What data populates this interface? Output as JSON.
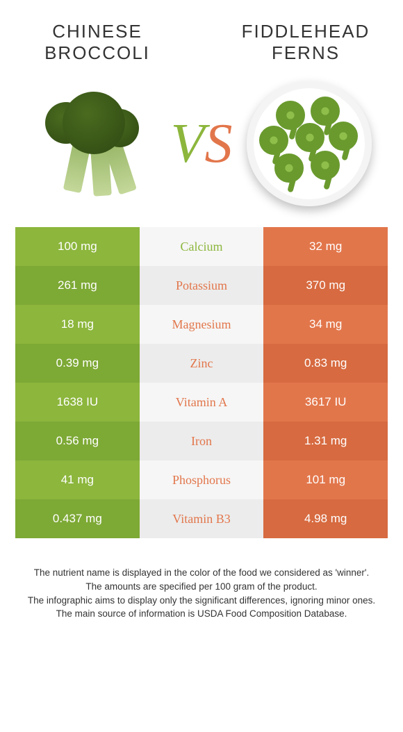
{
  "foods": {
    "left": {
      "title": "Chinese Broccoli"
    },
    "right": {
      "title": "Fiddlehead Ferns"
    }
  },
  "vs": {
    "v": "V",
    "s": "S"
  },
  "colors": {
    "left_a": "#8cb63c",
    "left_b": "#7da935",
    "mid_a": "#f6f6f6",
    "mid_b": "#ececec",
    "right_a": "#e2764b",
    "right_b": "#d76a40",
    "mid_green": "#8cb63c",
    "mid_orange": "#e2764b"
  },
  "rows": [
    {
      "left": "100 mg",
      "label": "Calcium",
      "right": "32 mg",
      "winner": "left"
    },
    {
      "left": "261 mg",
      "label": "Potassium",
      "right": "370 mg",
      "winner": "right"
    },
    {
      "left": "18 mg",
      "label": "Magnesium",
      "right": "34 mg",
      "winner": "right"
    },
    {
      "left": "0.39 mg",
      "label": "Zinc",
      "right": "0.83 mg",
      "winner": "right"
    },
    {
      "left": "1638 IU",
      "label": "Vitamin A",
      "right": "3617 IU",
      "winner": "right"
    },
    {
      "left": "0.56 mg",
      "label": "Iron",
      "right": "1.31 mg",
      "winner": "right"
    },
    {
      "left": "41 mg",
      "label": "Phosphorus",
      "right": "101 mg",
      "winner": "right"
    },
    {
      "left": "0.437 mg",
      "label": "Vitamin B3",
      "right": "4.98 mg",
      "winner": "right"
    }
  ],
  "footer": {
    "l1": "The nutrient name is displayed in the color of the food we considered as 'winner'.",
    "l2": "The amounts are specified per 100 gram of the product.",
    "l3": "The infographic aims to display only the significant differences, ignoring minor ones.",
    "l4": "The main source of information is USDA Food Composition Database."
  }
}
